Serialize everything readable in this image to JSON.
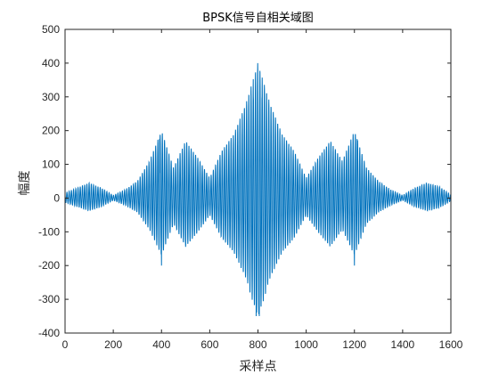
{
  "chart_data": {
    "type": "line",
    "title": "BPSK信号自相关域图",
    "xlabel": "采样点",
    "ylabel": "幅度",
    "xlim": [
      0,
      1600
    ],
    "ylim": [
      -400,
      500
    ],
    "xticks": [
      0,
      200,
      400,
      600,
      800,
      1000,
      1200,
      1400,
      1600
    ],
    "yticks": [
      -400,
      -300,
      -200,
      -100,
      0,
      100,
      200,
      300,
      400,
      500
    ],
    "grid": false,
    "series_color": "#0072BD",
    "series": [
      {
        "description": "oscillating autocorrelation, ~12-sample period; approximate envelope peaks",
        "envelope": {
          "x": [
            0,
            100,
            150,
            200,
            250,
            300,
            350,
            400,
            450,
            500,
            550,
            600,
            650,
            700,
            750,
            800,
            850,
            900,
            950,
            1000,
            1050,
            1100,
            1150,
            1200,
            1250,
            1300,
            1350,
            1400,
            1450,
            1500,
            1550,
            1600
          ],
          "y": [
            15,
            45,
            30,
            8,
            25,
            50,
            110,
            200,
            90,
            170,
            120,
            60,
            140,
            190,
            280,
            400,
            280,
            190,
            140,
            60,
            120,
            170,
            110,
            200,
            90,
            50,
            25,
            8,
            30,
            45,
            35,
            10
          ]
        },
        "peaks": [
          {
            "x": 790,
            "y": -350
          },
          {
            "x": 799,
            "y": 400
          },
          {
            "x": 808,
            "y": -350
          },
          {
            "x": 781,
            "y": 300
          },
          {
            "x": 817,
            "y": 300
          },
          {
            "x": 400,
            "y": -200
          },
          {
            "x": 1200,
            "y": -200
          },
          {
            "x": 390,
            "y": 175
          },
          {
            "x": 1210,
            "y": 175
          }
        ]
      }
    ]
  }
}
